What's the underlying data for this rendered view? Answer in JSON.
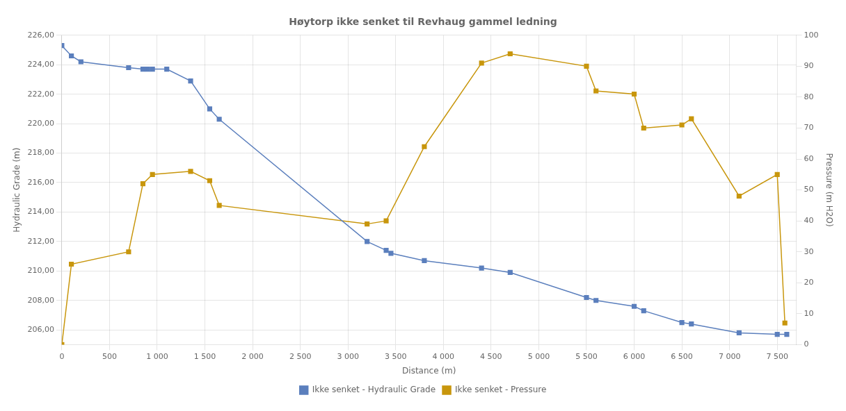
{
  "chart_data": {
    "type": "line",
    "title": "Høytorp ikke senket til Revhaug gammel ledning",
    "x_label": "Distance (m)",
    "y_label": "Hydraulic Grade (m)",
    "y2_label": "Pressure (m H2O)",
    "series": [
      {
        "name": "Ikke senket - Hydraulic Grade",
        "color": "#5b7fbd",
        "marker": "square",
        "axis": "y",
        "x": [
          0,
          100,
          200,
          700,
          850,
          900,
          950,
          1100,
          1350,
          1550,
          1650,
          3200,
          3400,
          3450,
          3800,
          4400,
          4700,
          5500,
          5600,
          6000,
          6100,
          6500,
          6600,
          7100,
          7500,
          7600
        ],
        "values": [
          225.3,
          224.6,
          224.2,
          223.8,
          223.7,
          223.7,
          223.7,
          223.7,
          222.9,
          221.0,
          220.3,
          212.0,
          211.4,
          211.2,
          210.7,
          210.2,
          209.9,
          208.2,
          208.0,
          207.6,
          207.3,
          206.5,
          206.4,
          205.8,
          205.7,
          205.7
        ]
      },
      {
        "name": "Ikke senket - Pressure",
        "color": "#c8960c",
        "marker": "square",
        "axis": "y2",
        "x": [
          0,
          100,
          700,
          850,
          950,
          1350,
          1550,
          1650,
          3200,
          3400,
          3800,
          4400,
          4700,
          5500,
          5600,
          6000,
          6100,
          6500,
          6600,
          7100,
          7500,
          7580
        ],
        "values": [
          0,
          26,
          30,
          52,
          55,
          56,
          53,
          45,
          39,
          40,
          64,
          91,
          94,
          90,
          82,
          81,
          70,
          71,
          73,
          48,
          55,
          7
        ]
      }
    ],
    "xlim": [
      0,
      7700
    ],
    "xticks": [
      0,
      500,
      {
        "value": 1000,
        "label": "1 000"
      },
      {
        "value": 1500,
        "label": "1 500"
      },
      {
        "value": 2000,
        "label": "2 000"
      },
      {
        "value": 2500,
        "label": "2 500"
      },
      {
        "value": 3000,
        "label": "3 000"
      },
      {
        "value": 3500,
        "label": "3 500"
      },
      {
        "value": 4000,
        "label": "4 000"
      },
      {
        "value": 4500,
        "label": "4 500"
      },
      {
        "value": 5000,
        "label": "5 000"
      },
      {
        "value": 5500,
        "label": "5 500"
      },
      {
        "value": 6000,
        "label": "6 000"
      },
      {
        "value": 6500,
        "label": "6 500"
      },
      {
        "value": 7000,
        "label": "7 000"
      },
      {
        "value": 7500,
        "label": "7 500"
      }
    ],
    "ylim": [
      205,
      226
    ],
    "yticks": [
      {
        "value": 206,
        "label": "206,00"
      },
      {
        "value": 208,
        "label": "208,00"
      },
      {
        "value": 210,
        "label": "210,00"
      },
      {
        "value": 212,
        "label": "212,00"
      },
      {
        "value": 214,
        "label": "214,00"
      },
      {
        "value": 216,
        "label": "216,00"
      },
      {
        "value": 218,
        "label": "218,00"
      },
      {
        "value": 220,
        "label": "220,00"
      },
      {
        "value": 222,
        "label": "222,00"
      },
      {
        "value": 224,
        "label": "224,00"
      },
      {
        "value": 226,
        "label": "226,00"
      }
    ],
    "y2lim": [
      0,
      100
    ],
    "y2ticks": [
      0,
      10,
      20,
      30,
      40,
      50,
      60,
      70,
      80,
      90,
      100
    ],
    "grid": true,
    "legend": "bottom"
  }
}
